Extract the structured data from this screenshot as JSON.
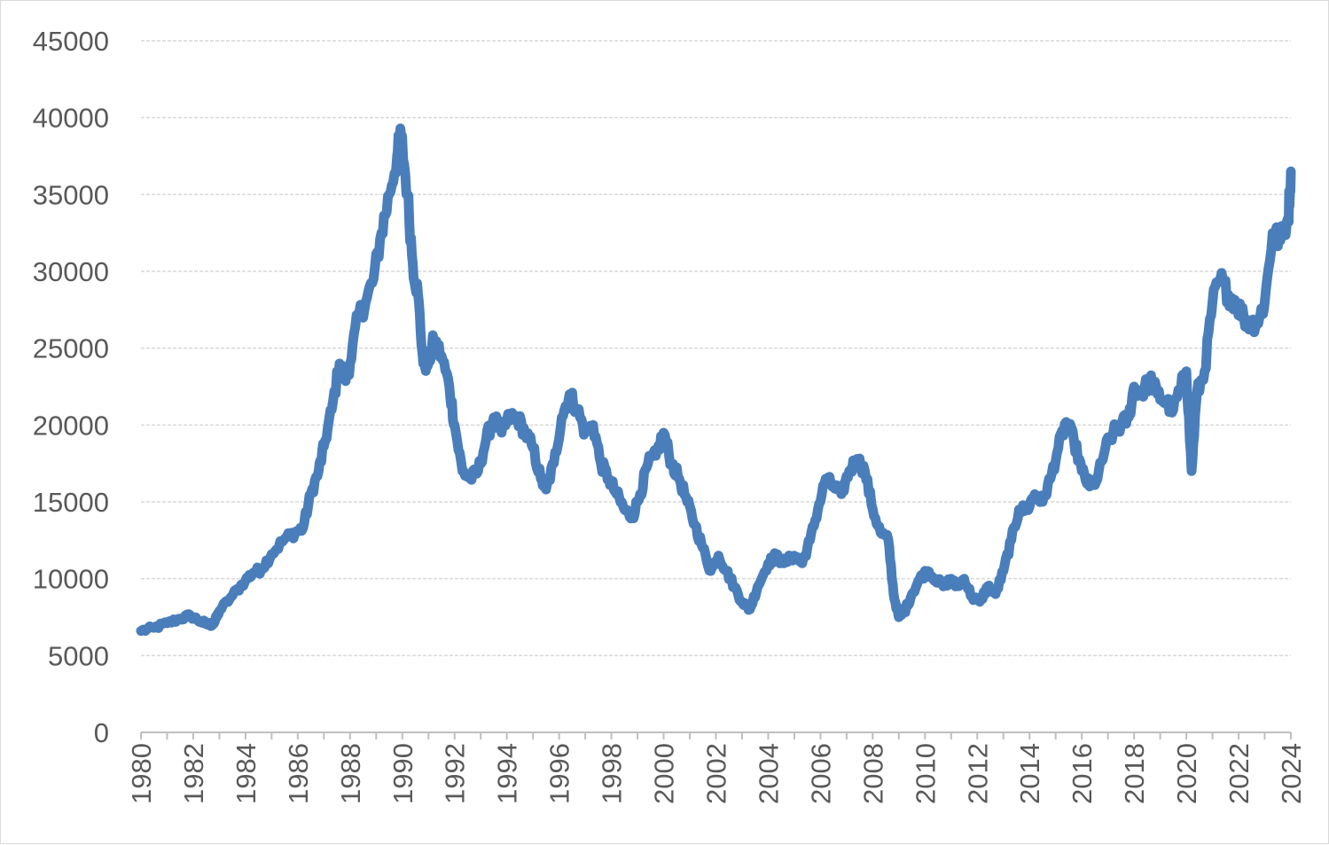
{
  "chart_data": {
    "type": "line",
    "title": "",
    "xlabel": "",
    "ylabel": "",
    "xlim": [
      1980,
      2024
    ],
    "ylim": [
      0,
      45000
    ],
    "y_ticks": [
      0,
      5000,
      10000,
      15000,
      20000,
      25000,
      30000,
      35000,
      40000,
      45000
    ],
    "y_tick_labels": [
      "0",
      "5000",
      "10000",
      "15000",
      "20000",
      "25000",
      "30000",
      "35000",
      "40000",
      "45000"
    ],
    "x_ticks": [
      1980,
      1982,
      1984,
      1986,
      1988,
      1990,
      1992,
      1994,
      1996,
      1998,
      2000,
      2002,
      2004,
      2006,
      2008,
      2010,
      2012,
      2014,
      2016,
      2018,
      2020,
      2022,
      2024
    ],
    "x_tick_labels": [
      "1980",
      "1982",
      "1984",
      "1986",
      "1988",
      "1990",
      "1992",
      "1994",
      "1996",
      "1998",
      "2000",
      "2002",
      "2004",
      "2006",
      "2008",
      "2010",
      "2012",
      "2014",
      "2016",
      "2018",
      "2020",
      "2022",
      "2024"
    ],
    "grid": true,
    "legend": "none",
    "line_color": "#4a7ebb",
    "series": [
      {
        "x": [
          1980.0,
          1980.5,
          1981.0,
          1981.5,
          1981.9,
          1982.3,
          1982.6,
          1982.8,
          1983.0,
          1983.5,
          1984.0,
          1984.3,
          1984.6,
          1985.0,
          1985.5,
          1985.9,
          1986.2,
          1986.5,
          1986.8,
          1987.0,
          1987.3,
          1987.6,
          1987.8,
          1988.0,
          1988.3,
          1988.6,
          1988.9,
          1989.2,
          1989.5,
          1989.8,
          1989.95,
          1990.2,
          1990.4,
          1990.6,
          1990.8,
          1991.0,
          1991.2,
          1991.5,
          1991.8,
          1992.0,
          1992.3,
          1992.6,
          1992.9,
          1993.2,
          1993.5,
          1993.8,
          1994.1,
          1994.4,
          1994.7,
          1995.0,
          1995.3,
          1995.5,
          1995.8,
          1996.1,
          1996.4,
          1996.7,
          1997.0,
          1997.3,
          1997.6,
          1997.9,
          1998.2,
          1998.5,
          1998.8,
          1999.1,
          1999.4,
          1999.7,
          2000.0,
          2000.3,
          2000.6,
          2000.9,
          2001.2,
          2001.5,
          2001.8,
          2002.1,
          2002.4,
          2002.7,
          2003.0,
          2003.3,
          2003.6,
          2004.0,
          2004.3,
          2004.6,
          2005.0,
          2005.3,
          2005.6,
          2005.9,
          2006.2,
          2006.5,
          2006.8,
          2007.1,
          2007.4,
          2007.7,
          2008.0,
          2008.3,
          2008.6,
          2008.8,
          2009.0,
          2009.2,
          2009.5,
          2009.8,
          2010.1,
          2010.4,
          2010.7,
          2011.0,
          2011.2,
          2011.5,
          2011.8,
          2012.1,
          2012.4,
          2012.7,
          2013.0,
          2013.3,
          2013.6,
          2013.9,
          2014.2,
          2014.5,
          2014.8,
          2015.1,
          2015.4,
          2015.7,
          2016.0,
          2016.3,
          2016.6,
          2016.9,
          2017.2,
          2017.5,
          2017.8,
          2018.0,
          2018.3,
          2018.6,
          2018.9,
          2019.2,
          2019.5,
          2019.8,
          2020.0,
          2020.2,
          2020.4,
          2020.7,
          2021.0,
          2021.3,
          2021.6,
          2021.9,
          2022.2,
          2022.5,
          2022.8,
          2023.0,
          2023.3,
          2023.6,
          2023.9,
          2024.0
        ],
        "values": [
          6600,
          6800,
          7100,
          7400,
          7600,
          7200,
          7000,
          7100,
          7900,
          8900,
          9900,
          10400,
          10600,
          11600,
          12600,
          13000,
          13300,
          15500,
          17000,
          18600,
          21000,
          24000,
          23000,
          24000,
          27000,
          28000,
          29500,
          32500,
          35000,
          37500,
          38900,
          35000,
          30500,
          28500,
          24000,
          24000,
          25500,
          24500,
          22500,
          20000,
          17000,
          16500,
          17000,
          19000,
          20500,
          19500,
          20500,
          20500,
          19500,
          18500,
          16500,
          15800,
          17500,
          20500,
          22000,
          21000,
          19500,
          20000,
          17500,
          16500,
          15500,
          14500,
          14000,
          15500,
          17500,
          18000,
          19500,
          17500,
          16500,
          15000,
          13500,
          12000,
          10500,
          11500,
          10500,
          9500,
          8500,
          8000,
          9500,
          11000,
          11500,
          11000,
          11500,
          11000,
          12500,
          14500,
          16500,
          16000,
          15500,
          17000,
          17800,
          17000,
          14500,
          13000,
          12500,
          9000,
          7500,
          7800,
          9000,
          10000,
          10500,
          10000,
          9500,
          10000,
          9500,
          10000,
          8800,
          8500,
          9500,
          9000,
          10500,
          12500,
          14500,
          14500,
          15500,
          15000,
          16500,
          18500,
          20200,
          19000,
          17000,
          16000,
          16500,
          18500,
          19500,
          20000,
          20500,
          22500,
          22000,
          23000,
          22000,
          21500,
          21000,
          22500,
          23500,
          17000,
          22000,
          23500,
          28000,
          29500,
          28500,
          28000,
          27000,
          26500,
          27000,
          28000,
          32500,
          32000,
          33500,
          36500
        ]
      }
    ]
  }
}
